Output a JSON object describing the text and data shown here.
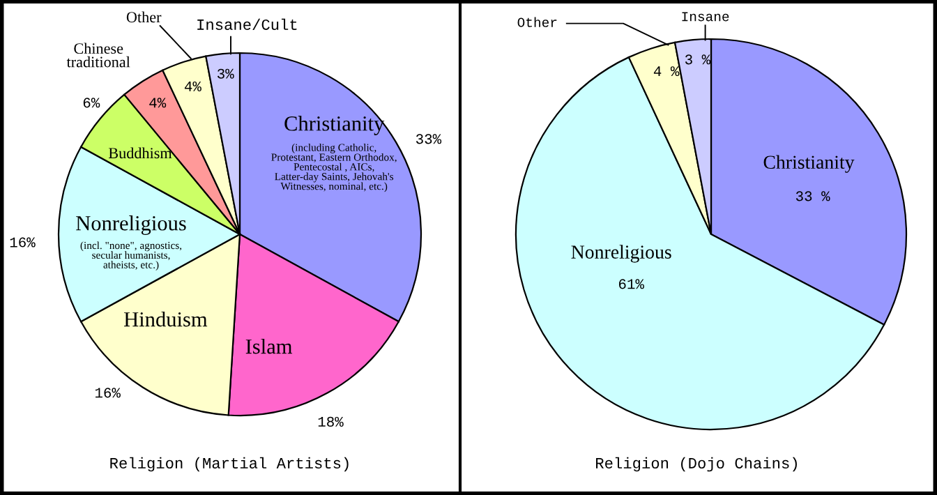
{
  "chart_data": [
    {
      "type": "pie",
      "title": "Religion (Martial Artists)",
      "categories": [
        "Christianity",
        "Islam",
        "Hinduism",
        "Nonreligious",
        "Buddhism",
        "Chinese\ntraditional",
        "Other",
        "Insane/Cult"
      ],
      "values": [
        33,
        18,
        16,
        16,
        6,
        4,
        4,
        3
      ],
      "value_labels": [
        "33%",
        "18%",
        "16%",
        "16%",
        "6%",
        "4%",
        "4%",
        "3%"
      ],
      "colors": [
        "#9999ff",
        "#ff66cc",
        "#ffffcc",
        "#ccffff",
        "#ccff66",
        "#ff9999",
        "#ffffcc",
        "#ccccff"
      ],
      "annotations": [
        "(including Catholic,\nProtestant, Eastern Orthodox,\nPentecostal , AICs,\nLatter-day Saints, Jehovah's\nWitnesses, nominal, etc.)",
        "(incl. \"none\", agnostics,\nsecular humanists,\natheists, etc.)"
      ]
    },
    {
      "type": "pie",
      "title": "Religion (Dojo Chains)",
      "categories": [
        "Christianity",
        "Nonreligious",
        "Other",
        "Insane"
      ],
      "values": [
        33,
        61,
        4,
        3
      ],
      "value_labels": [
        "33 %",
        "61%",
        "4 %",
        "3 %"
      ],
      "colors": [
        "#9999ff",
        "#ccffff",
        "#ffffcc",
        "#ccccff"
      ]
    }
  ]
}
